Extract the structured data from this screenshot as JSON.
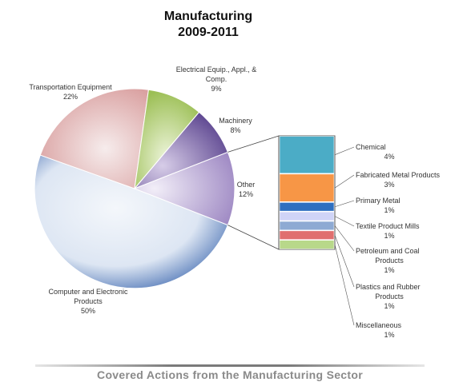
{
  "title_line1": "Manufacturing",
  "title_line2": "2009-2011",
  "caption": "Covered Actions from the Manufacturing Sector",
  "chart_data": {
    "type": "pie",
    "title": "Manufacturing 2009-2011",
    "slices": [
      {
        "label_lines": [
          "Computer and Electronic",
          "Products"
        ],
        "value": 50,
        "value_label": "50%",
        "color": "#d9e3f1"
      },
      {
        "label_lines": [
          "Transportation Equipment"
        ],
        "value": 22,
        "value_label": "22%",
        "color": "#ead0d0"
      },
      {
        "label_lines": [
          "Electrical Equip., Appl., &",
          "Comp."
        ],
        "value": 9,
        "value_label": "9%",
        "color": "#c9dc9a"
      },
      {
        "label_lines": [
          "Machinery"
        ],
        "value": 8,
        "value_label": "8%",
        "color": "#8f79b5"
      },
      {
        "label_lines": [
          "Other"
        ],
        "value": 12,
        "value_label": "12%",
        "color": "#d6cde6"
      }
    ],
    "other_breakdown": {
      "type": "stacked-bar",
      "items": [
        {
          "label_lines": [
            "Chemical"
          ],
          "value": 4,
          "value_label": "4%",
          "color": "#4bacc6"
        },
        {
          "label_lines": [
            "Fabricated Metal Products"
          ],
          "value": 3,
          "value_label": "3%",
          "color": "#f79646"
        },
        {
          "label_lines": [
            "Primary Metal"
          ],
          "value": 1,
          "value_label": "1%",
          "color": "#2f6fc0"
        },
        {
          "label_lines": [
            "Textile Product Mills"
          ],
          "value": 1,
          "value_label": "1%",
          "color": "#d0d4f7"
        },
        {
          "label_lines": [
            "Petroleum and Coal",
            "Products"
          ],
          "value": 1,
          "value_label": "1%",
          "color": "#8eaad3"
        },
        {
          "label_lines": [
            "Plastics and Rubber",
            "Products"
          ],
          "value": 1,
          "value_label": "1%",
          "color": "#e06f6f"
        },
        {
          "label_lines": [
            "Miscellaneous"
          ],
          "value": 1,
          "value_label": "1%",
          "color": "#b8d88a"
        }
      ]
    }
  }
}
